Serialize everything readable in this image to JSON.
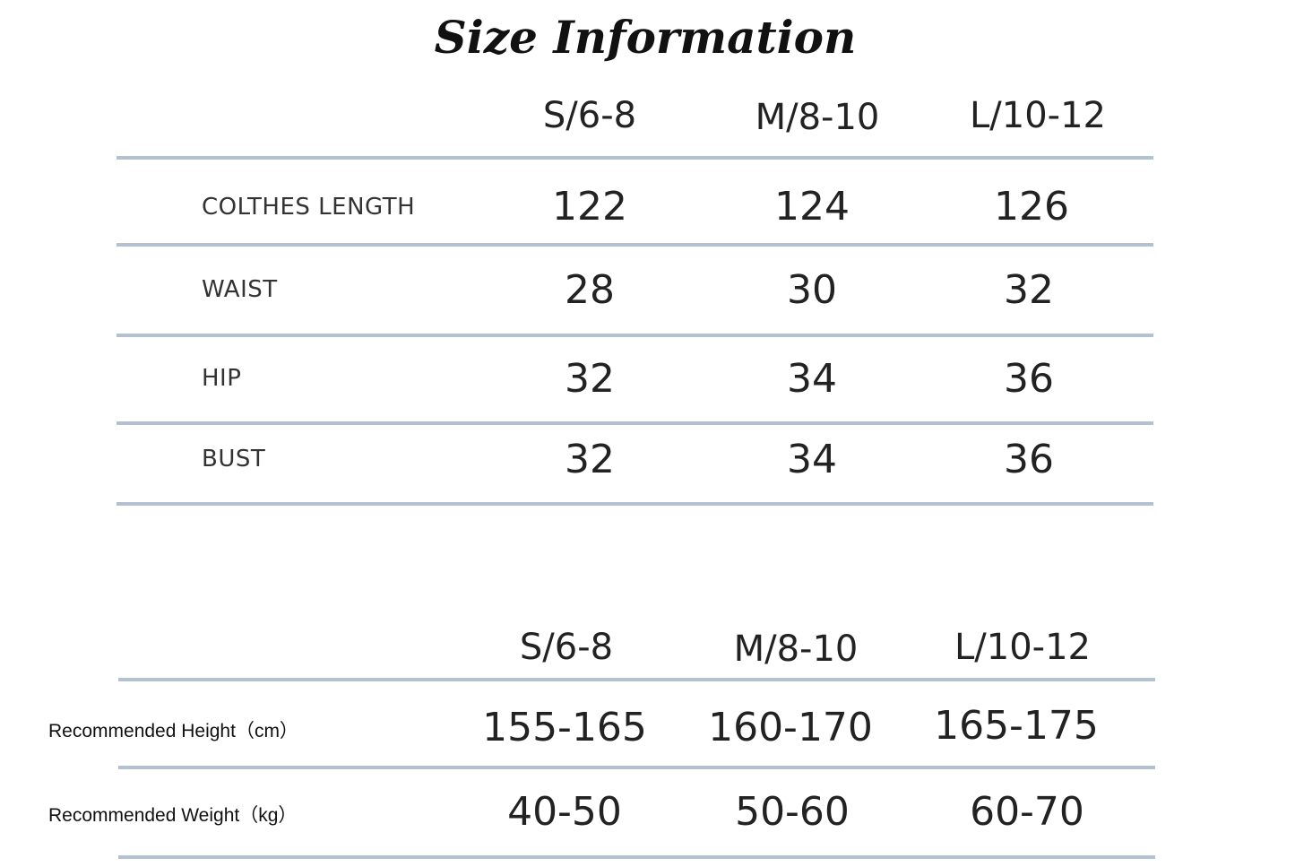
{
  "title": "Size Information",
  "measurements_table": {
    "headers": [
      "S/6-8",
      "M/8-10",
      "L/10-12"
    ],
    "rows": [
      {
        "label": "COLTHES LENGTH",
        "values": [
          "122",
          "124",
          "126"
        ]
      },
      {
        "label": "WAIST",
        "values": [
          "28",
          "30",
          "32"
        ]
      },
      {
        "label": "HIP",
        "values": [
          "32",
          "34",
          "36"
        ]
      },
      {
        "label": "BUST",
        "values": [
          "32",
          "34",
          "36"
        ]
      }
    ]
  },
  "recommendation_table": {
    "headers": [
      "S/6-8",
      "M/8-10",
      "L/10-12"
    ],
    "rows": [
      {
        "label": "Recommended Height（cm）",
        "values": [
          "155-165",
          "160-170",
          "165-175"
        ]
      },
      {
        "label": "Recommended Weight（kg）",
        "values": [
          "40-50",
          "50-60",
          "60-70"
        ]
      }
    ]
  },
  "colors": {
    "rule": "#b4c1d1",
    "text": "#222222"
  }
}
